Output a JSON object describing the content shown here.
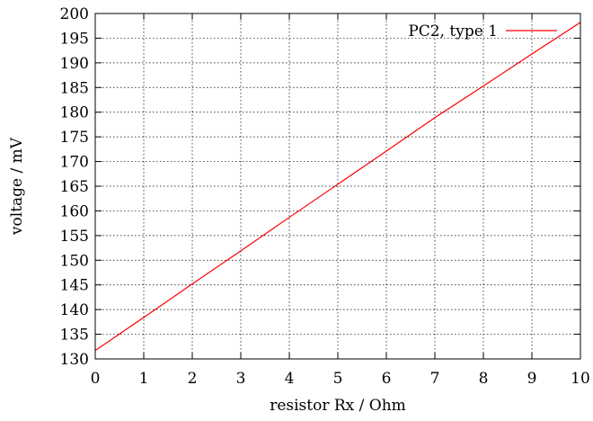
{
  "chart_data": {
    "type": "line",
    "title": "",
    "xlabel": "resistor Rx / Ohm",
    "ylabel": "voltage / mV",
    "xlim": [
      0,
      10
    ],
    "ylim": [
      130,
      200
    ],
    "x_ticks": [
      0,
      1,
      2,
      3,
      4,
      5,
      6,
      7,
      8,
      9,
      10
    ],
    "y_ticks": [
      130,
      135,
      140,
      145,
      150,
      155,
      160,
      165,
      170,
      175,
      180,
      185,
      190,
      195,
      200
    ],
    "grid": true,
    "legend_position": "top-right",
    "series": [
      {
        "name": "PC2, type 1",
        "color": "#ff0000",
        "x": [
          0,
          1,
          2,
          3,
          4,
          5,
          6,
          7,
          8,
          9,
          10
        ],
        "y": [
          131.7,
          138.4,
          145.2,
          151.9,
          158.7,
          165.4,
          172.1,
          178.9,
          185.3,
          191.8,
          198.2
        ]
      }
    ]
  }
}
